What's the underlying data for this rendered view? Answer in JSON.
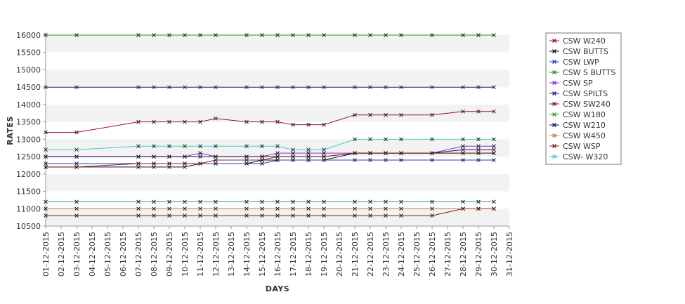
{
  "chart_data": {
    "type": "line",
    "title": "",
    "xlabel": "DAYS",
    "ylabel": "RATES",
    "ylim": [
      10500,
      16000
    ],
    "yticks": [
      10500,
      11000,
      11500,
      12000,
      12500,
      13000,
      13500,
      14000,
      14500,
      15000,
      15500,
      16000
    ],
    "x_categories": [
      "01-12-2015",
      "02-12-2015",
      "03-12-2015",
      "04-12-2015",
      "05-12-2015",
      "06-12-2015",
      "07-12-2015",
      "08-12-2015",
      "09-12-2015",
      "10-12-2015",
      "11-12-2015",
      "12-12-2015",
      "13-12-2015",
      "14-12-2015",
      "15-12-2015",
      "16-12-2015",
      "17-12-2015",
      "18-12-2015",
      "19-12-2015",
      "20-12-2015",
      "21-12-2015",
      "22-12-2015",
      "23-12-2015",
      "24-12-2015",
      "25-12-2015",
      "26-12-2015",
      "27-12-2015",
      "28-12-2015",
      "29-12-2015",
      "30-12-2015",
      "31-12-2015"
    ],
    "x_dates": [
      "01-12-2015",
      "03-12-2015",
      "07-12-2015",
      "08-12-2015",
      "09-12-2015",
      "10-12-2015",
      "11-12-2015",
      "12-12-2015",
      "14-12-2015",
      "15-12-2015",
      "16-12-2015",
      "17-12-2015",
      "18-12-2015",
      "19-12-2015",
      "21-12-2015",
      "22-12-2015",
      "23-12-2015",
      "24-12-2015",
      "26-12-2015",
      "28-12-2015",
      "29-12-2015",
      "30-12-2015"
    ],
    "grid": "alternating horizontal bands",
    "legend_position": "right",
    "series": [
      {
        "name": "CSW  W240",
        "color": "#a0005a",
        "values": [
          13200,
          13200,
          13500,
          13500,
          13500,
          13500,
          13500,
          13600,
          13500,
          13500,
          13500,
          13420,
          13420,
          13420,
          13700,
          13700,
          13700,
          13700,
          13700,
          13800,
          13800,
          13800
        ]
      },
      {
        "name": "CSW BUTTS",
        "color": "#111111",
        "values": [
          12200,
          12200,
          12200,
          12200,
          12200,
          12200,
          12300,
          12300,
          12300,
          12400,
          12400,
          12400,
          12400,
          12400,
          12600,
          12600,
          12600,
          12600,
          12600,
          12600,
          12600,
          12600
        ]
      },
      {
        "name": "CSW LWP",
        "color": "#1f3fbf",
        "values": [
          12300,
          12300,
          12300,
          12300,
          12300,
          12300,
          12300,
          12300,
          12300,
          12300,
          12400,
          12400,
          12400,
          12400,
          12400,
          12400,
          12400,
          12400,
          12400,
          12400,
          12400,
          12400
        ]
      },
      {
        "name": "CSW S BUTTS",
        "color": "#2f8f2f",
        "values": [
          16000,
          16000,
          16000,
          16000,
          16000,
          16000,
          16000,
          16000,
          16000,
          16000,
          16000,
          16000,
          16000,
          16000,
          16000,
          16000,
          16000,
          16000,
          16000,
          16000,
          16000,
          16000
        ]
      },
      {
        "name": "CSW SP",
        "color": "#8a2be2",
        "values": [
          12500,
          12500,
          12500,
          12500,
          12500,
          12500,
          12600,
          12500,
          12500,
          12500,
          12600,
          12600,
          12600,
          12600,
          12600,
          12600,
          12600,
          12600,
          12600,
          12800,
          12800,
          12800
        ]
      },
      {
        "name": "CSW SPILTS",
        "color": "#2a1a8a",
        "values": [
          14500,
          14500,
          14500,
          14500,
          14500,
          14500,
          14500,
          14500,
          14500,
          14500,
          14500,
          14500,
          14500,
          14500,
          14500,
          14500,
          14500,
          14500,
          14500,
          14500,
          14500,
          14500
        ]
      },
      {
        "name": "CSW SW240",
        "color": "#7a1030",
        "values": [
          10800,
          10800,
          10800,
          10800,
          10800,
          10800,
          10800,
          10800,
          10800,
          10800,
          10800,
          10800,
          10800,
          10800,
          10800,
          10800,
          10800,
          10800,
          10800,
          11000,
          11000,
          11000
        ]
      },
      {
        "name": "CSW W180",
        "color": "#3aa03a",
        "values": [
          11200,
          11200,
          11200,
          11200,
          11200,
          11200,
          11200,
          11200,
          11200,
          11200,
          11200,
          11200,
          11200,
          11200,
          11200,
          11200,
          11200,
          11200,
          11200,
          11200,
          11200,
          11200
        ]
      },
      {
        "name": "CSW W210",
        "color": "#111155",
        "values": [
          12500,
          12500,
          12500,
          12500,
          12500,
          12500,
          12500,
          12500,
          12500,
          12500,
          12500,
          12500,
          12500,
          12500,
          12600,
          12600,
          12600,
          12600,
          12600,
          12700,
          12700,
          12700
        ]
      },
      {
        "name": "CSW W450",
        "color": "#c07840",
        "values": [
          11000,
          11000,
          11000,
          11000,
          11000,
          11000,
          11000,
          11000,
          11000,
          11000,
          11000,
          11000,
          11000,
          11000,
          11000,
          11000,
          11000,
          11000,
          11000,
          11000,
          11000,
          11000
        ]
      },
      {
        "name": "CSW WSP",
        "color": "#8b2010",
        "values": [
          12200,
          12200,
          12300,
          12300,
          12300,
          12300,
          12300,
          12400,
          12400,
          12400,
          12500,
          12500,
          12500,
          12500,
          12600,
          12600,
          12600,
          12600,
          12600,
          12600,
          12600,
          12600
        ]
      },
      {
        "name": "CSW- W320",
        "color": "#40d0c8",
        "values": [
          12700,
          12700,
          12800,
          12800,
          12800,
          12800,
          12800,
          12800,
          12800,
          12800,
          12800,
          12700,
          12700,
          12700,
          13000,
          13000,
          13000,
          13000,
          13000,
          13000,
          13000,
          13000
        ]
      }
    ]
  }
}
